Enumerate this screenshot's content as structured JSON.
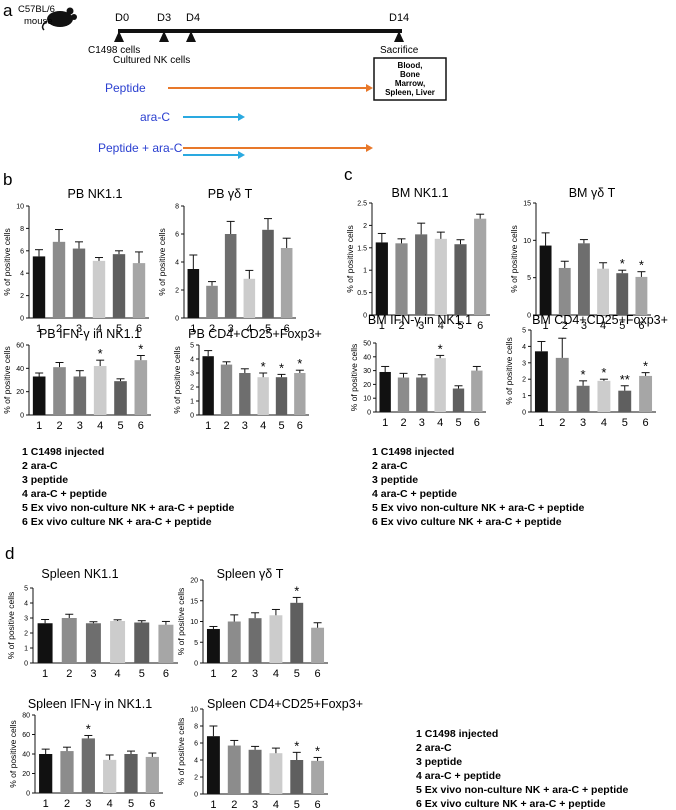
{
  "panel_labels": {
    "a": "a",
    "b": "b",
    "c": "c",
    "d": "d"
  },
  "timeline": {
    "mouse_label_line1": "C57BL/6",
    "mouse_label_line2": "mouse",
    "days": [
      "D0",
      "D3",
      "D4",
      "D14"
    ],
    "events": {
      "c1498": "C1498 cells",
      "nk": "Cultured NK cells",
      "sacrifice": "Sacrifice"
    },
    "tissues": [
      "Blood,",
      "Bone",
      "Marrow,",
      "Spleen, Liver"
    ],
    "treatments": [
      {
        "label": "Peptide",
        "arrow": "long"
      },
      {
        "label": "ara-C",
        "arrow": "short"
      },
      {
        "label": "Peptide + ara-C",
        "arrow": "both"
      }
    ],
    "colors": {
      "peptide": "#e8782a",
      "arac": "#2aa9e0",
      "label": "#2a3fd0"
    }
  },
  "legend_items": [
    "1 C1498 injected",
    "2 ara-C",
    "3 peptide",
    "4 ara-C + peptide",
    "5 Ex vivo non-culture NK + ara-C + peptide",
    "6 Ex vivo culture NK + ara-C + peptide"
  ],
  "bar_colors": [
    "#111111",
    "#8c8c8c",
    "#6e6e6e",
    "#cccccc",
    "#5f5f5f",
    "#a6a6a6"
  ],
  "chart_data": [
    {
      "id": "pb-nk11",
      "type": "bar",
      "title": "PB NK1.1",
      "ylabel": "% of positive cells",
      "categories": [
        "1",
        "2",
        "3",
        "4",
        "5",
        "6"
      ],
      "values": [
        5.5,
        6.8,
        6.2,
        5.1,
        5.7,
        4.9
      ],
      "errors": [
        0.6,
        1.1,
        0.6,
        0.3,
        0.3,
        1.0
      ],
      "ylim": [
        0,
        10
      ],
      "yticks": [
        0,
        2,
        4,
        6,
        8,
        10
      ],
      "sig": [
        "",
        "",
        "",
        "",
        "",
        ""
      ]
    },
    {
      "id": "pb-gdt",
      "type": "bar",
      "title": "PB γδ T",
      "ylabel": "% of positive cells",
      "categories": [
        "1",
        "2",
        "3",
        "4",
        "5",
        "6"
      ],
      "values": [
        3.5,
        2.3,
        6.0,
        2.8,
        6.3,
        5.0
      ],
      "errors": [
        1.0,
        0.3,
        0.9,
        0.6,
        0.8,
        0.7
      ],
      "ylim": [
        0,
        8
      ],
      "yticks": [
        0,
        2,
        4,
        6,
        8
      ],
      "sig": [
        "",
        "",
        "",
        "",
        "",
        ""
      ]
    },
    {
      "id": "pb-ifng",
      "type": "bar",
      "title": "PB IFN-γ in NK1.1",
      "ylabel": "% of positive cells",
      "categories": [
        "1",
        "2",
        "3",
        "4",
        "5",
        "6"
      ],
      "values": [
        33,
        41,
        33,
        42,
        29,
        47
      ],
      "errors": [
        3,
        4,
        5,
        5,
        2,
        4
      ],
      "ylim": [
        0,
        60
      ],
      "yticks": [
        0,
        20,
        40,
        60
      ],
      "sig": [
        "",
        "",
        "",
        "*",
        "",
        "*"
      ]
    },
    {
      "id": "pb-treg",
      "type": "bar",
      "title": "PB CD4+CD25+Foxp3+",
      "ylabel": "% of positive cells",
      "categories": [
        "1",
        "2",
        "3",
        "4",
        "5",
        "6"
      ],
      "values": [
        4.2,
        3.6,
        3.0,
        2.7,
        2.7,
        3.0
      ],
      "errors": [
        0.4,
        0.2,
        0.3,
        0.3,
        0.2,
        0.2
      ],
      "ylim": [
        0,
        5
      ],
      "yticks": [
        0,
        1,
        2,
        3,
        4,
        5
      ],
      "sig": [
        "",
        "",
        "",
        "*",
        "*",
        "*"
      ]
    },
    {
      "id": "bm-nk11",
      "type": "bar",
      "title": "BM NK1.1",
      "ylabel": "% of positive cells",
      "categories": [
        "1",
        "2",
        "3",
        "4",
        "5",
        "6"
      ],
      "values": [
        1.62,
        1.6,
        1.8,
        1.7,
        1.58,
        2.15
      ],
      "errors": [
        0.2,
        0.1,
        0.25,
        0.15,
        0.1,
        0.1
      ],
      "ylim": [
        0,
        2.5
      ],
      "yticks": [
        0,
        0.5,
        1.0,
        1.5,
        2.0,
        2.5
      ],
      "sig": [
        "",
        "",
        "",
        "",
        "",
        ""
      ]
    },
    {
      "id": "bm-gdt",
      "type": "bar",
      "title": "BM  γδ T",
      "ylabel": "% of positive cells",
      "categories": [
        "1",
        "2",
        "3",
        "4",
        "5",
        "6"
      ],
      "values": [
        9.3,
        6.3,
        9.6,
        6.2,
        5.6,
        5.1
      ],
      "errors": [
        1.7,
        0.9,
        0.5,
        0.8,
        0.4,
        0.7
      ],
      "ylim": [
        0,
        15
      ],
      "yticks": [
        0,
        5,
        10,
        15
      ],
      "sig": [
        "",
        "",
        "",
        "",
        "*",
        "*"
      ]
    },
    {
      "id": "bm-ifng",
      "type": "bar",
      "title": "BM IFN-γ in NK1.1",
      "ylabel": "% of positive cells",
      "categories": [
        "1",
        "2",
        "3",
        "4",
        "5",
        "6"
      ],
      "values": [
        29,
        25,
        25,
        39,
        17,
        30
      ],
      "errors": [
        4,
        3,
        2,
        2,
        2,
        3
      ],
      "ylim": [
        0,
        50
      ],
      "yticks": [
        0,
        10,
        20,
        30,
        40,
        50
      ],
      "sig": [
        "",
        "",
        "",
        "*",
        "",
        ""
      ]
    },
    {
      "id": "bm-treg",
      "type": "bar",
      "title": "BM CD4+CD25+Foxp3+",
      "ylabel": "% of positive cells",
      "categories": [
        "1",
        "2",
        "3",
        "4",
        "5",
        "6"
      ],
      "values": [
        3.7,
        3.3,
        1.6,
        1.9,
        1.3,
        2.2
      ],
      "errors": [
        0.6,
        1.2,
        0.3,
        0.1,
        0.3,
        0.2
      ],
      "ylim": [
        0,
        5
      ],
      "yticks": [
        0,
        1,
        2,
        3,
        4,
        5
      ],
      "sig": [
        "",
        "",
        "*",
        "*",
        "**",
        "*"
      ]
    },
    {
      "id": "sp-nk11",
      "type": "bar",
      "title": "Spleen  NK1.1",
      "ylabel": "% of positive cells",
      "categories": [
        "1",
        "2",
        "3",
        "4",
        "5",
        "6"
      ],
      "values": [
        2.65,
        3.0,
        2.65,
        2.8,
        2.7,
        2.55
      ],
      "errors": [
        0.25,
        0.25,
        0.1,
        0.08,
        0.12,
        0.22
      ],
      "ylim": [
        0,
        5
      ],
      "yticks": [
        0,
        1,
        2,
        3,
        4,
        5
      ],
      "sig": [
        "",
        "",
        "",
        "",
        "",
        ""
      ]
    },
    {
      "id": "sp-gdt",
      "type": "bar",
      "title": "Spleen γδ T",
      "ylabel": "% of positive cells",
      "categories": [
        "1",
        "2",
        "3",
        "4",
        "5",
        "6"
      ],
      "values": [
        8.2,
        10,
        10.8,
        11.5,
        14.5,
        8.5
      ],
      "errors": [
        0.6,
        1.6,
        1.3,
        1.4,
        1.3,
        1.2
      ],
      "ylim": [
        0,
        20
      ],
      "yticks": [
        0,
        5,
        10,
        15,
        20
      ],
      "sig": [
        "",
        "",
        "",
        "",
        "*",
        ""
      ]
    },
    {
      "id": "sp-ifng",
      "type": "bar",
      "title": "Spleen IFN-γ in NK1.1",
      "ylabel": "% of positive cells",
      "categories": [
        "1",
        "2",
        "3",
        "4",
        "5",
        "6"
      ],
      "values": [
        40,
        43,
        56,
        34,
        40,
        37
      ],
      "errors": [
        5,
        4,
        3,
        5,
        3,
        4
      ],
      "ylim": [
        0,
        80
      ],
      "yticks": [
        0,
        20,
        40,
        60,
        80
      ],
      "sig": [
        "",
        "",
        "*",
        "",
        "",
        ""
      ]
    },
    {
      "id": "sp-treg",
      "type": "bar",
      "title": "Spleen CD4+CD25+Foxp3+",
      "ylabel": "% of positive cells",
      "categories": [
        "1",
        "2",
        "3",
        "4",
        "5",
        "6"
      ],
      "values": [
        6.8,
        5.7,
        5.2,
        4.8,
        4.0,
        3.9
      ],
      "errors": [
        1.2,
        0.6,
        0.4,
        0.6,
        0.9,
        0.4
      ],
      "ylim": [
        0,
        10
      ],
      "yticks": [
        0,
        2,
        4,
        6,
        8,
        10
      ],
      "sig": [
        "",
        "",
        "",
        "",
        "*",
        "*"
      ]
    }
  ]
}
